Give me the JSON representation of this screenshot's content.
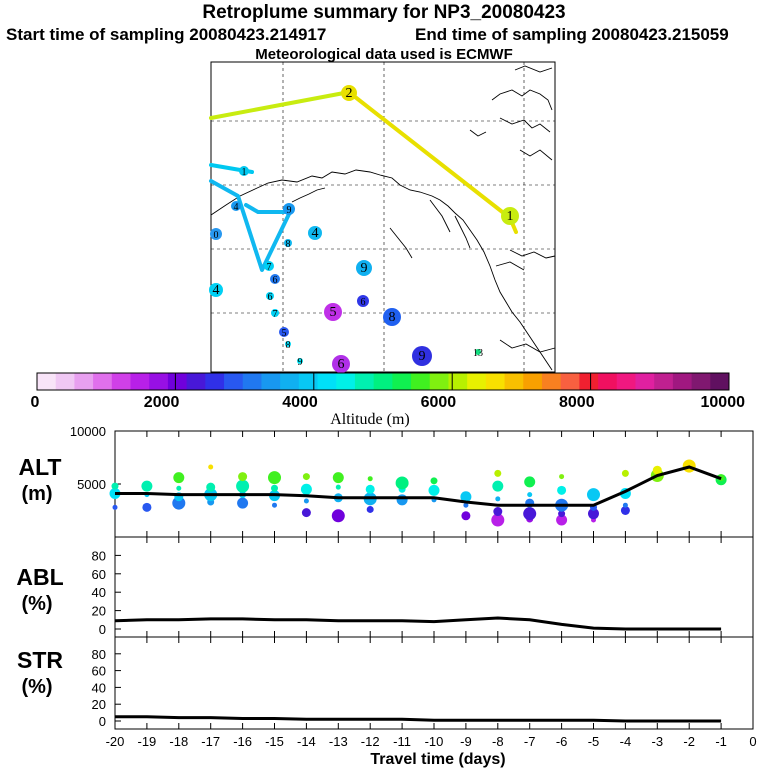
{
  "header": {
    "title": "Retroplume summary for NP3_20080423",
    "start_label": "Start time of sampling 20080423.214917",
    "end_label": "End time of sampling 20080423.215059",
    "met_label": "Meteorological data used is ECMWF"
  },
  "colorbar": {
    "tick_labels": [
      "0",
      "2000",
      "4000",
      "6000",
      "8000",
      "10000"
    ],
    "xlabel": "Altitude (m)",
    "colors": [
      "#f8e4f8",
      "#f0c8f4",
      "#e8a0f0",
      "#e070ec",
      "#d040e8",
      "#b820e8",
      "#9810e4",
      "#7000dc",
      "#4818d8",
      "#3030e8",
      "#2858f0",
      "#2078f0",
      "#1898f0",
      "#10b0f0",
      "#08c8f4",
      "#00e0f8",
      "#00f0e8",
      "#00f0b0",
      "#00f080",
      "#10f050",
      "#40f020",
      "#80f010",
      "#b8f000",
      "#e8f000",
      "#f8e000",
      "#f8c000",
      "#f8a000",
      "#f88020",
      "#f86040",
      "#f02030",
      "#f01060",
      "#f01880",
      "#e020a0",
      "#c02090",
      "#a01880",
      "#801870",
      "#601060"
    ]
  },
  "map": {
    "points": [
      {
        "label": "2",
        "color": "#e8e000"
      },
      {
        "label": "1",
        "color": "#c8ec10"
      },
      {
        "label": "1",
        "color": "#00c8f0"
      },
      {
        "label": "4",
        "color": "#1898f0"
      },
      {
        "label": "9",
        "color": "#1898f0"
      },
      {
        "label": "4",
        "color": "#10b8f0"
      },
      {
        "label": "8",
        "color": "#10b8f0"
      },
      {
        "label": "6",
        "color": "#2078f0"
      },
      {
        "label": "9",
        "color": "#10b0f0"
      },
      {
        "label": "7",
        "color": "#00d0f4"
      },
      {
        "label": "4",
        "color": "#00d0f4"
      },
      {
        "label": "6",
        "color": "#00d0f4"
      },
      {
        "label": "7",
        "color": "#00d0f4"
      },
      {
        "label": "5",
        "color": "#2858f0"
      },
      {
        "label": "8",
        "color": "#00d8f4"
      },
      {
        "label": "9",
        "color": "#00e0f0"
      },
      {
        "label": "5",
        "color": "#c030e8"
      },
      {
        "label": "6",
        "color": "#3038e8"
      },
      {
        "label": "8",
        "color": "#2060f0"
      },
      {
        "label": "6",
        "color": "#b030e8"
      },
      {
        "label": "9",
        "color": "#3030e0"
      },
      {
        "label": "13",
        "color": "#10e080"
      },
      {
        "label": "0",
        "color": "#2898f0"
      }
    ]
  },
  "panel_labels": {
    "alt_top": "ALT",
    "alt_bottom": "(m)",
    "abl_top": "ABL",
    "abl_bottom": "(%)",
    "str_top": "STR",
    "str_bottom": "(%)"
  },
  "chart_data": [
    {
      "type": "line",
      "title": "ALT",
      "ylabel": "ALT (m)",
      "ylim": [
        0,
        10000
      ],
      "yticks": [
        "10000",
        "5000"
      ],
      "x": [
        -20,
        -19,
        -18,
        -17,
        -16,
        -15,
        -14,
        -13,
        -12,
        -11,
        -10,
        -9,
        -8,
        -7,
        -6,
        -5,
        -4,
        -3,
        -2,
        -1
      ],
      "median": [
        4100,
        4100,
        4000,
        4000,
        4000,
        4000,
        3900,
        3700,
        3700,
        3700,
        3700,
        3300,
        3000,
        3000,
        3000,
        3000,
        4300,
        5800,
        6600,
        5500
      ],
      "clusters": [
        [
          2800,
          4100,
          4800
        ],
        [
          2800,
          4000,
          4800
        ],
        [
          3200,
          3800,
          4600,
          5600
        ],
        [
          3300,
          4000,
          4700,
          6600
        ],
        [
          3200,
          4000,
          4800,
          5700
        ],
        [
          3000,
          3900,
          4600,
          5600
        ],
        [
          2300,
          3400,
          4500,
          5700
        ],
        [
          2000,
          3700,
          4700,
          5600
        ],
        [
          2600,
          3600,
          4500,
          5500
        ],
        [
          3500,
          4500,
          5100
        ],
        [
          3500,
          4400,
          5300
        ],
        [
          2000,
          3000,
          3800
        ],
        [
          1600,
          2400,
          3600,
          4800,
          6000
        ],
        [
          1700,
          2200,
          3200,
          4000,
          5200
        ],
        [
          1600,
          2200,
          3000,
          4400,
          5700
        ],
        [
          1600,
          2200,
          2800,
          4000
        ],
        [
          2500,
          3000,
          4100,
          6000
        ],
        [
          5800,
          6300
        ],
        [
          6400,
          6700
        ],
        [
          5400,
          5600
        ]
      ]
    },
    {
      "type": "line",
      "title": "ABL",
      "ylabel": "ABL (%)",
      "ylim": [
        0,
        100
      ],
      "yticks": [
        "80",
        "60",
        "40",
        "20",
        "0"
      ],
      "x": [
        -20,
        -19,
        -18,
        -17,
        -16,
        -15,
        -14,
        -13,
        -12,
        -11,
        -10,
        -9,
        -8,
        -7,
        -6,
        -5,
        -4,
        -3,
        -2,
        -1
      ],
      "values": [
        9,
        10,
        10,
        11,
        11,
        10,
        10,
        9,
        9,
        9,
        8,
        10,
        12,
        10,
        5,
        1,
        0,
        0,
        0,
        0
      ]
    },
    {
      "type": "line",
      "title": "STR",
      "ylabel": "STR (%)",
      "ylim": [
        0,
        100
      ],
      "yticks": [
        "80",
        "60",
        "40",
        "20",
        "0"
      ],
      "x": [
        -20,
        -19,
        -18,
        -17,
        -16,
        -15,
        -14,
        -13,
        -12,
        -11,
        -10,
        -9,
        -8,
        -7,
        -6,
        -5,
        -4,
        -3,
        -2,
        -1
      ],
      "values": [
        5,
        5,
        4,
        4,
        3,
        3,
        2,
        2,
        2,
        2,
        1,
        1,
        1,
        1,
        1,
        1,
        0,
        0,
        0,
        0
      ]
    }
  ],
  "xaxis": {
    "ticks": [
      "-20",
      "-19",
      "-18",
      "-17",
      "-16",
      "-15",
      "-14",
      "-13",
      "-12",
      "-11",
      "-10",
      "-9",
      "-8",
      "-7",
      "-6",
      "-5",
      "-4",
      "-3",
      "-2",
      "-1",
      "0"
    ],
    "label": "Travel time (days)"
  }
}
